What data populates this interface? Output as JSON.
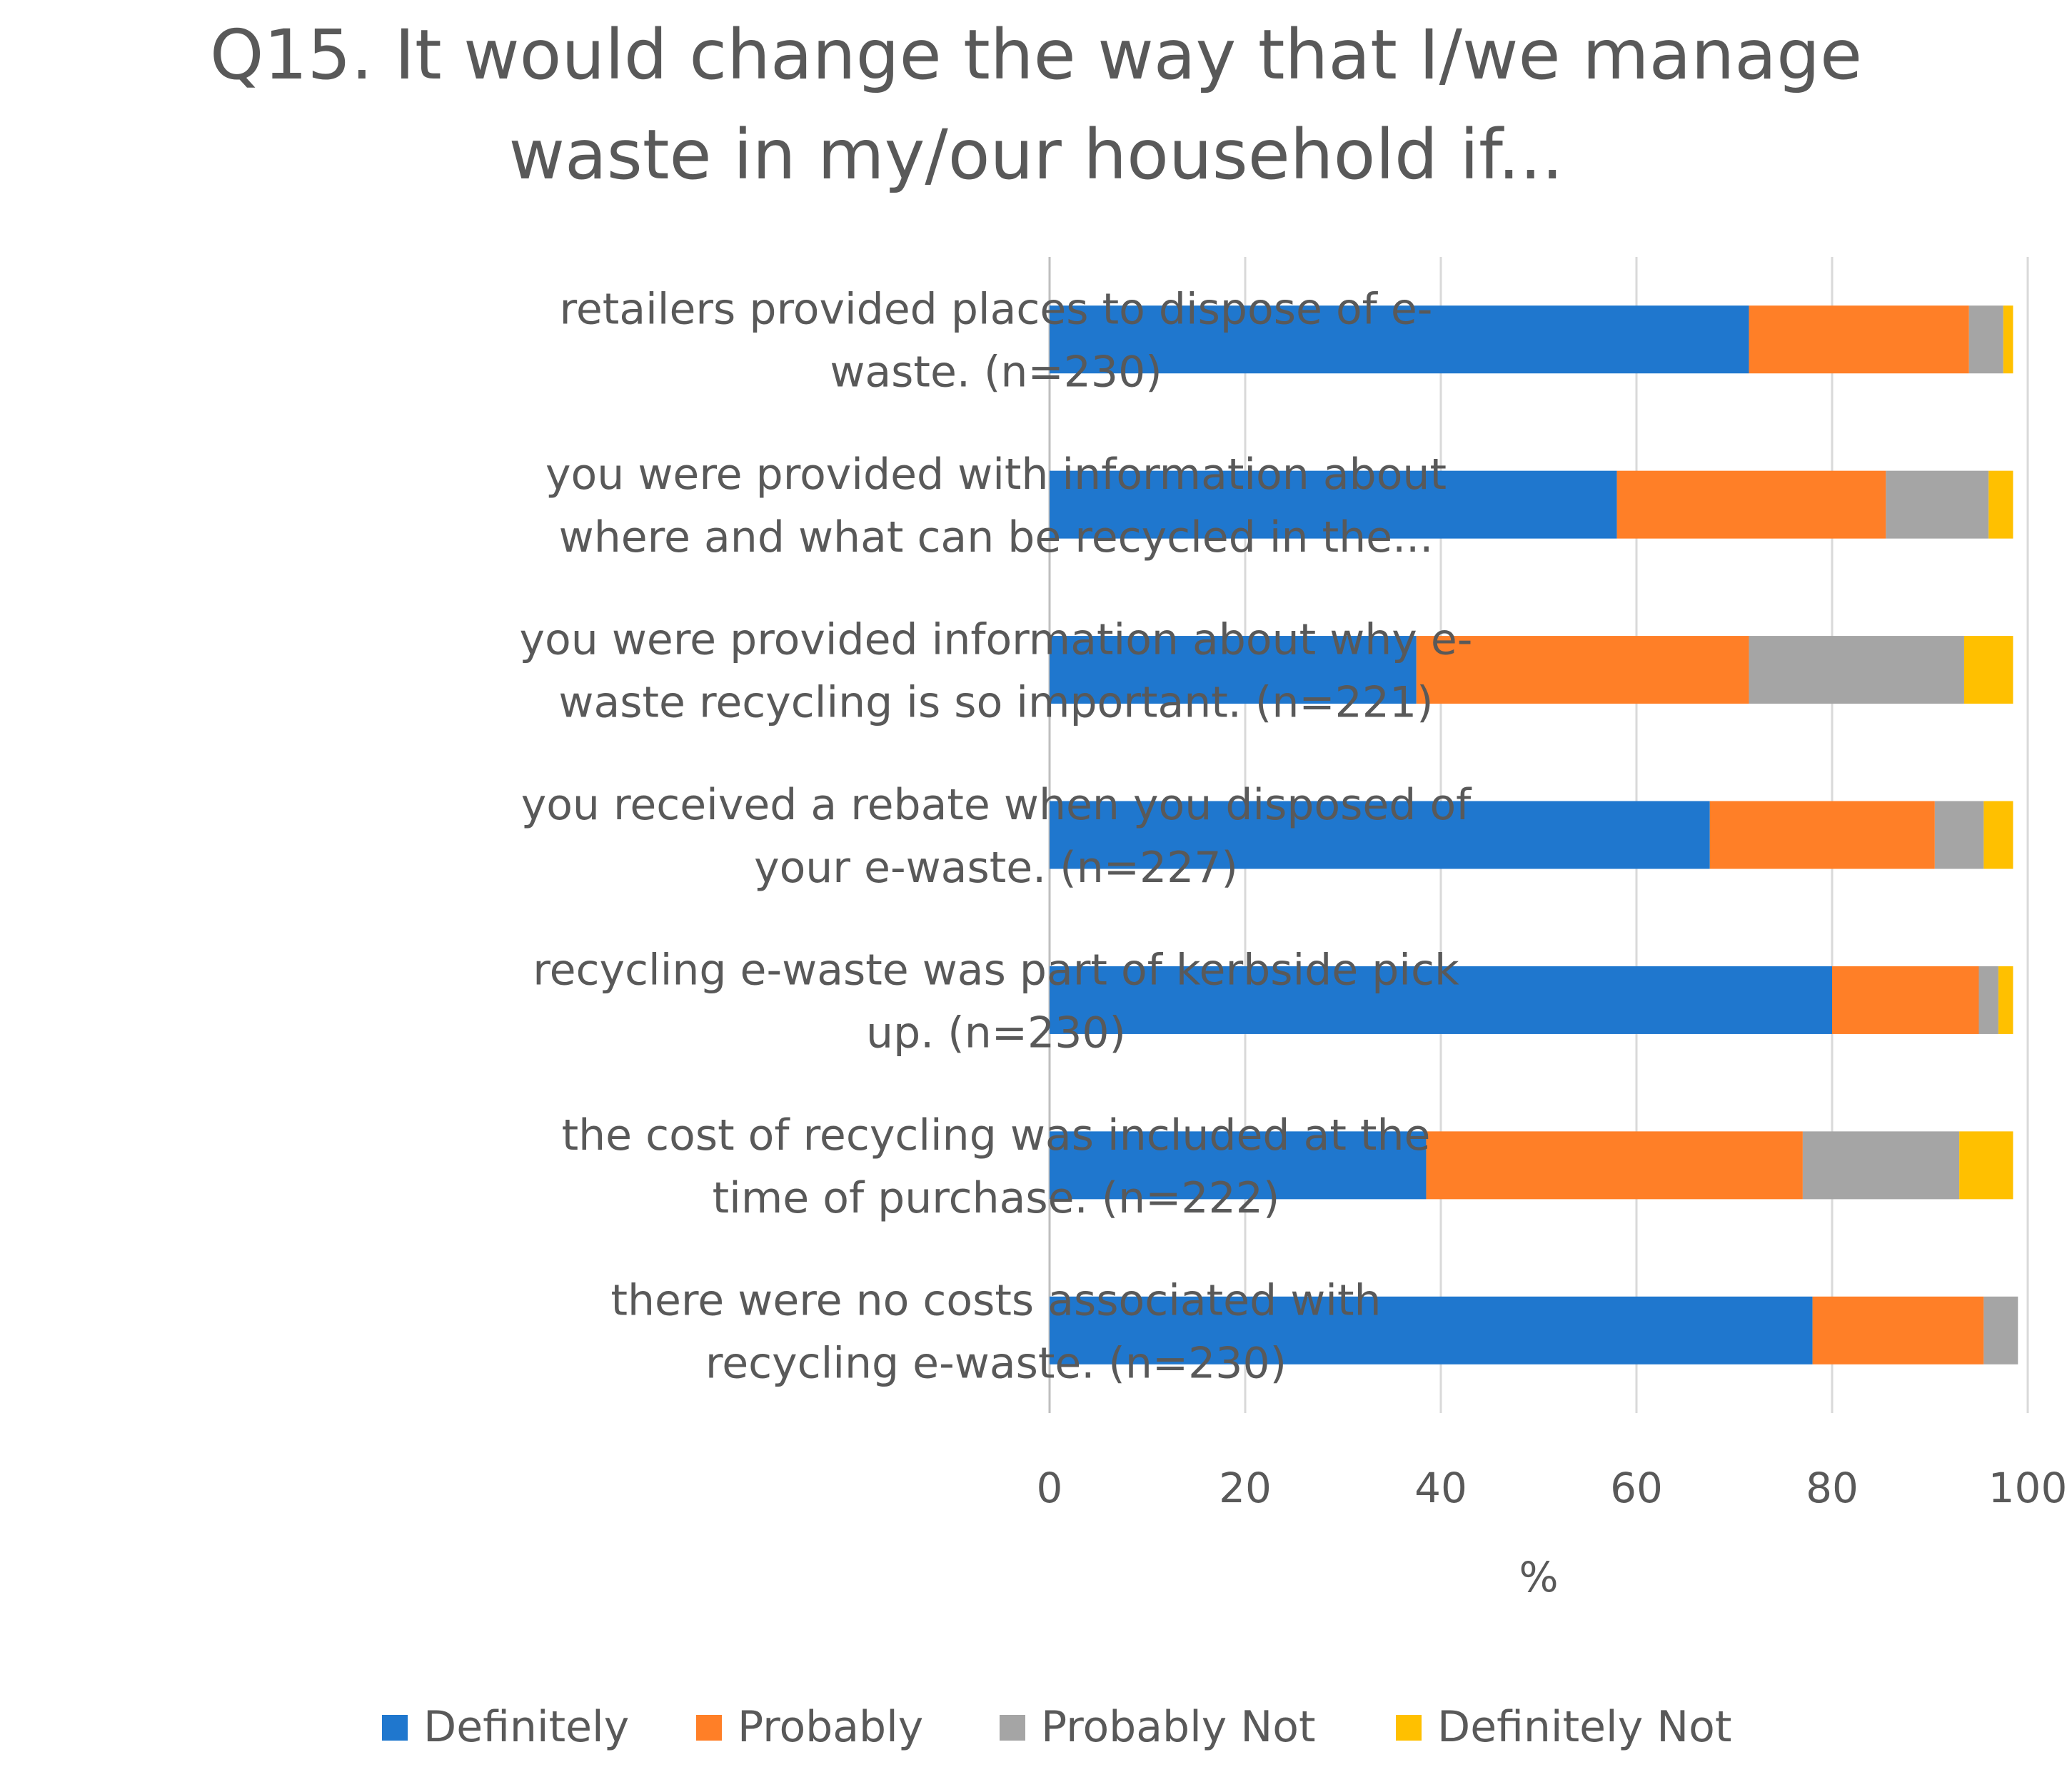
{
  "chart_data": {
    "type": "bar",
    "orientation": "horizontal",
    "stacked": true,
    "title_lines": [
      "Q15. It would change the way that I/we manage",
      "waste in my/our household if..."
    ],
    "categories": [
      [
        "retailers provided places to dispose of e-",
        "waste. (n=230)"
      ],
      [
        "you were provided with information about",
        "where and what can be recycled in the..."
      ],
      [
        "you were provided information about why e-",
        "waste recycling is so important. (n=221)"
      ],
      [
        "you received a rebate when you disposed of",
        "your e-waste. (n=227)"
      ],
      [
        "recycling e-waste was part of kerbside pick",
        "up. (n=230)"
      ],
      [
        "the cost of recycling was included at the",
        "time of purchase. (n=222)"
      ],
      [
        "there were no costs associated with",
        "recycling e-waste. (n=230)"
      ]
    ],
    "series": [
      {
        "name": "Definitely",
        "color": "#1F77CE",
        "values": [
          71.5,
          58,
          37.5,
          67.5,
          80,
          38.5,
          78
        ]
      },
      {
        "name": "Probably",
        "color": "#FF7F27",
        "values": [
          22.5,
          27.5,
          34,
          23,
          15,
          38.5,
          17.5
        ]
      },
      {
        "name": "Probably Not",
        "color": "#A5A5A5",
        "values": [
          3.5,
          10.5,
          22,
          5,
          2,
          16,
          3.5
        ]
      },
      {
        "name": "Definitely Not",
        "color": "#FFC000",
        "values": [
          1,
          2.5,
          5,
          3,
          1.5,
          5.5,
          0
        ]
      }
    ],
    "xlabel": "%",
    "xlim": [
      0,
      100
    ],
    "xticks": [
      0,
      20,
      40,
      60,
      80,
      100
    ],
    "grid": true,
    "legend": "bottom"
  }
}
